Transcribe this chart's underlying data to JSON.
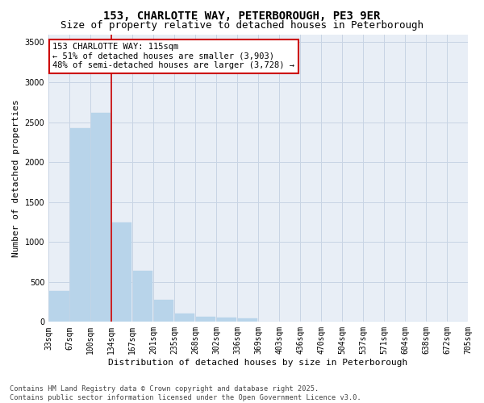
{
  "title": "153, CHARLOTTE WAY, PETERBOROUGH, PE3 9ER",
  "subtitle": "Size of property relative to detached houses in Peterborough",
  "xlabel": "Distribution of detached houses by size in Peterborough",
  "ylabel": "Number of detached properties",
  "bar_values": [
    390,
    2420,
    2620,
    1240,
    640,
    280,
    100,
    60,
    55,
    40,
    0,
    0,
    0,
    0,
    0,
    0,
    0,
    0,
    0,
    0
  ],
  "categories": [
    "33sqm",
    "67sqm",
    "100sqm",
    "134sqm",
    "167sqm",
    "201sqm",
    "235sqm",
    "268sqm",
    "302sqm",
    "336sqm",
    "369sqm",
    "403sqm",
    "436sqm",
    "470sqm",
    "504sqm",
    "537sqm",
    "571sqm",
    "604sqm",
    "638sqm",
    "672sqm",
    "705sqm"
  ],
  "bar_color": "#b8d4ea",
  "bar_edgecolor": "#b8d4ea",
  "grid_color": "#c8d4e4",
  "bg_color": "#e8eef6",
  "vline_color": "#cc0000",
  "ylim": [
    0,
    3600
  ],
  "yticks": [
    0,
    500,
    1000,
    1500,
    2000,
    2500,
    3000,
    3500
  ],
  "annotation_text": "153 CHARLOTTE WAY: 115sqm\n← 51% of detached houses are smaller (3,903)\n48% of semi-detached houses are larger (3,728) →",
  "annotation_box_color": "#ffffff",
  "annotation_box_edgecolor": "#cc0000",
  "footer_text": "Contains HM Land Registry data © Crown copyright and database right 2025.\nContains public sector information licensed under the Open Government Licence v3.0.",
  "title_fontsize": 10,
  "subtitle_fontsize": 9,
  "axis_label_fontsize": 8,
  "tick_fontsize": 7,
  "annotation_fontsize": 7.5
}
